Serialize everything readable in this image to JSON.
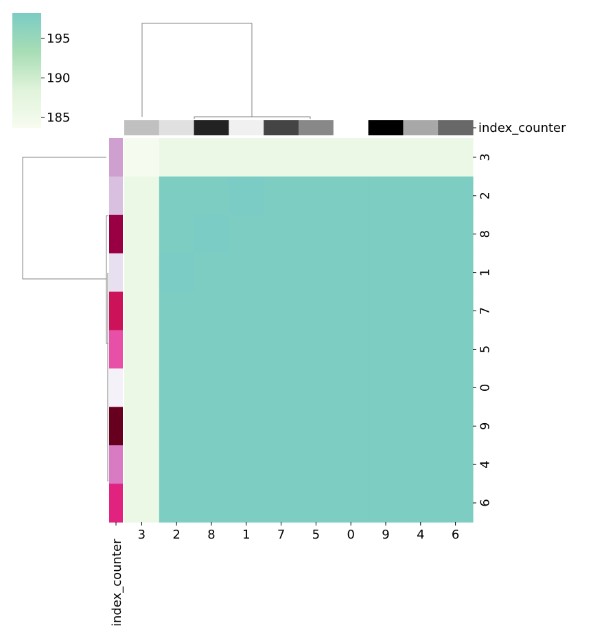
{
  "chart_data": {
    "type": "heatmap",
    "title": "",
    "row_labels": [
      "3",
      "2",
      "8",
      "1",
      "7",
      "5",
      "0",
      "9",
      "4",
      "6"
    ],
    "col_labels": [
      "3",
      "2",
      "8",
      "1",
      "7",
      "5",
      "0",
      "9",
      "4",
      "6"
    ],
    "values": [
      [
        184.0,
        186.0,
        186.0,
        186.0,
        186.0,
        186.0,
        186.0,
        186.0,
        186.0,
        186.0
      ],
      [
        186.0,
        198.0,
        198.0,
        198.2,
        198.0,
        198.0,
        198.0,
        198.0,
        198.0,
        198.0
      ],
      [
        186.0,
        198.0,
        198.3,
        198.0,
        198.0,
        198.0,
        198.0,
        198.0,
        198.0,
        198.0
      ],
      [
        186.0,
        198.2,
        198.0,
        198.0,
        198.0,
        198.0,
        198.0,
        198.0,
        198.0,
        198.0
      ],
      [
        186.0,
        198.0,
        198.0,
        198.0,
        198.0,
        198.0,
        198.0,
        198.0,
        198.0,
        198.0
      ],
      [
        186.0,
        198.0,
        198.0,
        198.0,
        198.0,
        198.0,
        198.0,
        198.0,
        198.0,
        198.0
      ],
      [
        186.0,
        198.0,
        198.0,
        198.0,
        198.0,
        198.0,
        198.0,
        198.0,
        198.0,
        198.0
      ],
      [
        186.0,
        198.0,
        198.0,
        198.0,
        198.0,
        198.0,
        198.0,
        198.0,
        198.0,
        198.0
      ],
      [
        186.0,
        198.0,
        198.0,
        198.0,
        198.0,
        198.0,
        198.0,
        198.0,
        198.0,
        198.0
      ],
      [
        186.0,
        198.0,
        198.0,
        198.0,
        198.0,
        198.0,
        198.0,
        198.0,
        198.0,
        198.0
      ]
    ],
    "colorbar": {
      "ticks": [
        "185",
        "190",
        "195"
      ],
      "tick_values": [
        185,
        190,
        195
      ],
      "vmin": 183.7,
      "vmax": 198.2,
      "colors": [
        "#f7fcf0",
        "#e0f3db",
        "#a8ddb5",
        "#7bccc4"
      ]
    },
    "col_colors": {
      "label": "index_counter",
      "colors": [
        "#c0c0c0",
        "#e0e0e0",
        "#222222",
        "#f0f0f0",
        "#444444",
        "#888888",
        "#ffffff",
        "#000000",
        "#a8a8a8",
        "#686868"
      ]
    },
    "row_colors": {
      "label": "index_counter",
      "colors": [
        "#cf9fcf",
        "#d9bfe0",
        "#980043",
        "#e8dff0",
        "#cc1259",
        "#e84fa6",
        "#f4f1f8",
        "#67001f",
        "#d87bc3",
        "#e2227f"
      ]
    },
    "dendrogram_color": "#808080",
    "grid": false
  }
}
